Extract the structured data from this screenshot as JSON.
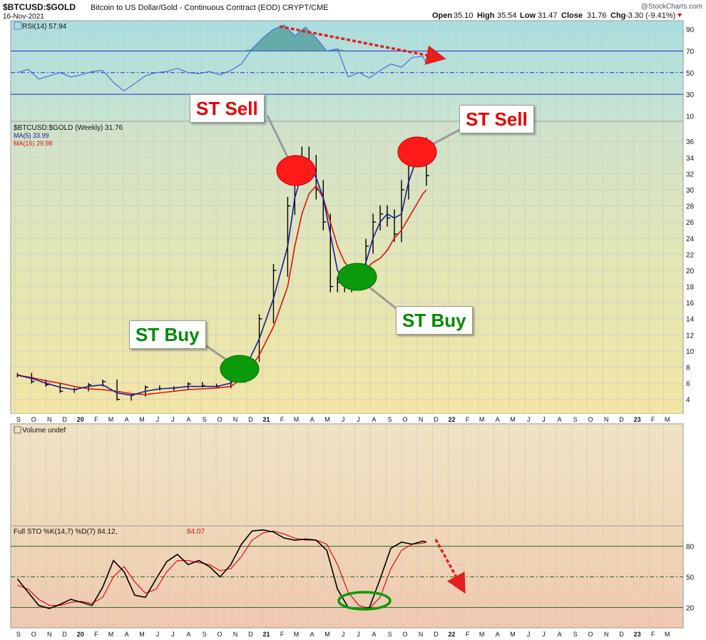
{
  "header": {
    "symbol": "$BTCUSD:$GOLD",
    "description": "Bitcoin to US Dollar/Gold - Continuous Contract (EOD)  CRYPT/CME",
    "date": "16-Nov-2021",
    "brand": "@StockCharts.com",
    "open_label": "Open",
    "open": "35.10",
    "high_label": "High",
    "high": "35.54",
    "low_label": "Low",
    "low": "31.47",
    "close_label": "Close",
    "close": "31.76",
    "chg_label": "Chg",
    "chg": "-3.30 (-9.41%)"
  },
  "callouts": {
    "sell1": "ST Sell",
    "sell2": "ST Sell",
    "buy1": "ST Buy",
    "buy2": "ST Buy"
  },
  "colors": {
    "price_bar": "#000000",
    "ma5": "#1a1a9a",
    "ma15": "#dd1111",
    "rsi": "#4a6fd8",
    "sto_k": "#000000",
    "sto_d": "#dd1111",
    "sell_marker": "#ff1a1a",
    "buy_marker": "#0a9a0a",
    "arrow": "#e41f1f"
  },
  "chart_data": [
    {
      "type": "line",
      "panel": "rsi",
      "legend": "RSI(14) 57.94",
      "yticks": [
        10,
        30,
        50,
        70,
        90
      ],
      "ylim": [
        5,
        98
      ],
      "reference_lines": [
        30,
        50,
        70
      ],
      "x": [
        "2019-09-06",
        "2019-09-27",
        "2019-10-18",
        "2019-11-08",
        "2019-11-29",
        "2019-12-20",
        "2020-01-10",
        "2020-01-31",
        "2020-02-21",
        "2020-03-13",
        "2020-04-03",
        "2020-04-24",
        "2020-05-15",
        "2020-06-05",
        "2020-06-26",
        "2020-07-17",
        "2020-08-07",
        "2020-08-28",
        "2020-09-18",
        "2020-10-09",
        "2020-10-30",
        "2020-11-20",
        "2020-12-11",
        "2021-01-01",
        "2021-01-22",
        "2021-02-12",
        "2021-03-05",
        "2021-03-26",
        "2021-04-16",
        "2021-05-07",
        "2021-05-28",
        "2021-06-18",
        "2021-07-09",
        "2021-07-30",
        "2021-08-20",
        "2021-09-10",
        "2021-10-01",
        "2021-10-22",
        "2021-11-12",
        "2021-11-19"
      ],
      "values": [
        50,
        53,
        44,
        47,
        50,
        46,
        48,
        51,
        52,
        41,
        33,
        40,
        47,
        50,
        51,
        54,
        50,
        49,
        51,
        48,
        52,
        58,
        72,
        82,
        90,
        94,
        84,
        92,
        82,
        70,
        72,
        46,
        50,
        45,
        52,
        58,
        55,
        64,
        65,
        58
      ]
    },
    {
      "type": "line",
      "panel": "price",
      "title": "$BTCUSD:$GOLD (Weekly) 31.76",
      "yticks": [
        4,
        6,
        8,
        10,
        12,
        14,
        16,
        18,
        20,
        22,
        24,
        26,
        28,
        30,
        32,
        34,
        36
      ],
      "ylim": [
        2.2,
        38.5
      ],
      "x": [
        "2019-09-06",
        "2019-10-04",
        "2019-11-01",
        "2019-11-29",
        "2019-12-27",
        "2020-01-24",
        "2020-02-21",
        "2020-03-20",
        "2020-04-17",
        "2020-05-15",
        "2020-06-12",
        "2020-07-10",
        "2020-08-07",
        "2020-09-04",
        "2020-10-02",
        "2020-10-30",
        "2020-11-27",
        "2020-12-25",
        "2021-01-22",
        "2021-02-19",
        "2021-03-05",
        "2021-03-19",
        "2021-04-02",
        "2021-04-16",
        "2021-04-30",
        "2021-05-14",
        "2021-05-28",
        "2021-06-11",
        "2021-06-25",
        "2021-07-09",
        "2021-07-23",
        "2021-08-06",
        "2021-08-20",
        "2021-09-03",
        "2021-09-17",
        "2021-10-01",
        "2021-10-15",
        "2021-10-29",
        "2021-11-12",
        "2021-11-19"
      ],
      "close": [
        7.0,
        6.2,
        5.8,
        5.0,
        5.2,
        5.8,
        6.2,
        4.0,
        4.5,
        5.5,
        5.3,
        5.4,
        5.9,
        5.7,
        5.6,
        6.3,
        9.0,
        14.0,
        20.0,
        28.0,
        33.0,
        34.0,
        33.0,
        30.0,
        26.0,
        18.0,
        18.5,
        18.0,
        18.8,
        19.5,
        23.0,
        26.0,
        27.0,
        26.5,
        24.5,
        30.0,
        34.5,
        35.0,
        35.1,
        31.76
      ],
      "ma5": [
        7.0,
        6.6,
        6.0,
        5.5,
        5.2,
        5.6,
        5.8,
        4.8,
        4.5,
        5.0,
        5.3,
        5.4,
        5.6,
        5.6,
        5.6,
        6.0,
        7.8,
        11.5,
        16.5,
        23.0,
        29.0,
        32.0,
        33.0,
        31.5,
        29.0,
        24.5,
        20.0,
        18.5,
        18.5,
        19.0,
        21.0,
        24.0,
        26.0,
        27.0,
        26.5,
        27.0,
        31.0,
        33.5,
        34.5,
        33.99
      ],
      "ma15": [
        7.0,
        6.7,
        6.3,
        6.0,
        5.6,
        5.3,
        5.2,
        5.0,
        4.7,
        4.6,
        4.8,
        5.0,
        5.2,
        5.3,
        5.4,
        5.6,
        6.8,
        9.5,
        13.0,
        18.0,
        23.0,
        27.0,
        29.5,
        30.5,
        29.0,
        26.0,
        23.0,
        21.0,
        20.0,
        19.8,
        20.2,
        21.0,
        21.5,
        22.5,
        24.0,
        25.0,
        26.5,
        28.0,
        29.5,
        29.98
      ],
      "series": [
        {
          "name": "MA(5) 33.99",
          "key": "ma5"
        },
        {
          "name": "MA(15) 29.98",
          "key": "ma15"
        }
      ],
      "annotations": [
        "ST Sell",
        "ST Sell",
        "ST Buy",
        "ST Buy"
      ]
    },
    {
      "type": "bar",
      "panel": "volume",
      "title": "Volume undef",
      "values": []
    },
    {
      "type": "line",
      "panel": "stochastic",
      "legend": "Full STO %K(14,7) %D(7) 84.12,",
      "legend_d_value": "84.07",
      "yticks": [
        20,
        50,
        80
      ],
      "ylim": [
        0,
        100
      ],
      "reference_lines": [
        20,
        50,
        80
      ],
      "x": [
        "2019-09-06",
        "2019-09-27",
        "2019-10-18",
        "2019-11-08",
        "2019-11-29",
        "2019-12-20",
        "2020-01-10",
        "2020-01-31",
        "2020-02-21",
        "2020-03-13",
        "2020-04-03",
        "2020-04-24",
        "2020-05-15",
        "2020-06-05",
        "2020-06-26",
        "2020-07-17",
        "2020-08-07",
        "2020-08-28",
        "2020-09-18",
        "2020-10-09",
        "2020-10-30",
        "2020-11-20",
        "2020-12-11",
        "2021-01-01",
        "2021-01-22",
        "2021-02-12",
        "2021-03-05",
        "2021-03-26",
        "2021-04-16",
        "2021-05-07",
        "2021-05-28",
        "2021-06-18",
        "2021-07-09",
        "2021-07-30",
        "2021-08-20",
        "2021-09-10",
        "2021-10-01",
        "2021-10-22",
        "2021-11-12",
        "2021-11-19"
      ],
      "k": [
        48,
        35,
        22,
        19,
        23,
        28,
        25,
        22,
        40,
        66,
        55,
        32,
        30,
        48,
        65,
        72,
        62,
        66,
        60,
        50,
        62,
        82,
        95,
        96,
        94,
        88,
        86,
        87,
        86,
        76,
        38,
        20,
        18,
        20,
        48,
        78,
        84,
        82,
        85,
        84.12
      ],
      "d": [
        42,
        38,
        28,
        22,
        22,
        25,
        26,
        24,
        30,
        50,
        60,
        45,
        34,
        38,
        55,
        66,
        66,
        64,
        62,
        56,
        58,
        70,
        86,
        93,
        95,
        92,
        88,
        86,
        86,
        82,
        62,
        35,
        22,
        19,
        30,
        58,
        76,
        82,
        83,
        84.07
      ]
    }
  ],
  "x_axis": {
    "labels": [
      "S",
      "O",
      "N",
      "D",
      "20",
      "F",
      "M",
      "A",
      "M",
      "J",
      "J",
      "A",
      "S",
      "O",
      "N",
      "D",
      "21",
      "F",
      "M",
      "A",
      "M",
      "J",
      "J",
      "A",
      "S",
      "O",
      "N",
      "D",
      "22",
      "F",
      "M",
      "A",
      "M",
      "J",
      "J",
      "A",
      "S",
      "O",
      "N",
      "D",
      "23",
      "F",
      "M"
    ],
    "bold": [
      "20",
      "21",
      "22",
      "23"
    ]
  }
}
